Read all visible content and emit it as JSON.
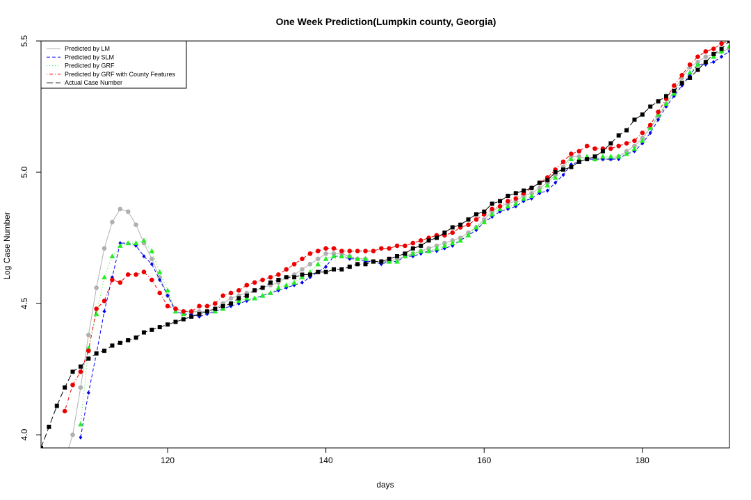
{
  "chart_data": {
    "type": "line",
    "title": "One Week Prediction(Lumpkin county, Georgia)",
    "xlabel": "days",
    "ylabel": "Log Case Number",
    "xlim": [
      104,
      191
    ],
    "ylim": [
      3.95,
      5.5
    ],
    "xticks": [
      120,
      140,
      160,
      180
    ],
    "yticks": [
      4.0,
      4.5,
      5.0,
      5.5
    ],
    "ytick_labels": [
      "4.0",
      "4.5",
      "5.0",
      "5.5"
    ],
    "legend_position": "top-left",
    "grid": false,
    "x": [
      104,
      105,
      106,
      107,
      108,
      109,
      110,
      111,
      112,
      113,
      114,
      115,
      116,
      117,
      118,
      119,
      120,
      121,
      122,
      123,
      124,
      125,
      126,
      127,
      128,
      129,
      130,
      131,
      132,
      133,
      134,
      135,
      136,
      137,
      138,
      139,
      140,
      141,
      142,
      143,
      144,
      145,
      146,
      147,
      148,
      149,
      150,
      151,
      152,
      153,
      154,
      155,
      156,
      157,
      158,
      159,
      160,
      161,
      162,
      163,
      164,
      165,
      166,
      167,
      168,
      169,
      170,
      171,
      172,
      173,
      174,
      175,
      176,
      177,
      178,
      179,
      180,
      181,
      182,
      183,
      184,
      185,
      186,
      187,
      188,
      189,
      190,
      191
    ],
    "series": [
      {
        "name": "Predicted by LM",
        "color": "#b0b0b0",
        "line": "solid",
        "marker": "circle",
        "values": [
          null,
          null,
          null,
          3.9,
          4.0,
          4.18,
          4.38,
          4.56,
          4.71,
          4.81,
          4.86,
          4.85,
          4.8,
          4.73,
          4.67,
          4.6,
          4.53,
          4.48,
          4.47,
          4.47,
          4.47,
          4.47,
          4.48,
          4.5,
          4.52,
          4.53,
          4.54,
          4.55,
          4.56,
          4.57,
          4.58,
          4.6,
          4.61,
          4.63,
          4.65,
          4.67,
          4.69,
          4.69,
          4.69,
          4.68,
          4.67,
          4.67,
          4.66,
          4.66,
          4.66,
          4.67,
          4.68,
          4.69,
          4.7,
          4.71,
          4.72,
          4.73,
          4.74,
          4.75,
          4.77,
          4.79,
          4.82,
          4.85,
          4.87,
          4.88,
          4.89,
          4.91,
          4.92,
          4.94,
          4.96,
          4.99,
          5.02,
          5.06,
          5.06,
          5.05,
          5.05,
          5.05,
          5.05,
          5.06,
          5.08,
          5.1,
          5.13,
          5.17,
          5.21,
          5.26,
          5.31,
          5.36,
          5.4,
          5.42,
          5.44,
          5.45,
          5.46,
          5.47
        ]
      },
      {
        "name": "Predicted by SLM",
        "color": "#0000ee",
        "line": "dashed",
        "marker": "diamond",
        "values": [
          null,
          null,
          null,
          null,
          null,
          3.99,
          4.16,
          4.31,
          4.47,
          4.6,
          4.73,
          4.73,
          4.72,
          4.68,
          4.65,
          4.59,
          4.53,
          4.47,
          4.46,
          4.46,
          4.45,
          4.46,
          4.47,
          4.48,
          4.49,
          4.5,
          4.51,
          4.52,
          4.53,
          4.54,
          4.55,
          4.56,
          4.57,
          4.58,
          4.6,
          4.62,
          4.64,
          4.68,
          4.68,
          4.67,
          4.67,
          4.66,
          4.66,
          4.65,
          4.66,
          4.66,
          4.68,
          4.68,
          4.69,
          4.7,
          4.7,
          4.71,
          4.72,
          4.74,
          4.76,
          4.78,
          4.81,
          4.83,
          4.85,
          4.86,
          4.87,
          4.89,
          4.9,
          4.92,
          4.93,
          4.96,
          4.99,
          5.03,
          5.04,
          5.05,
          5.05,
          5.05,
          5.05,
          5.05,
          5.07,
          5.08,
          5.11,
          5.15,
          5.2,
          5.25,
          5.29,
          5.33,
          5.37,
          5.41,
          5.41,
          5.42,
          5.44,
          5.46
        ]
      },
      {
        "name": "Predicted by GRF",
        "color": "#22ee22",
        "line": "dotted",
        "marker": "triangle",
        "values": [
          null,
          null,
          null,
          null,
          null,
          4.04,
          4.33,
          4.46,
          4.6,
          4.68,
          4.72,
          4.73,
          4.73,
          4.74,
          4.7,
          4.62,
          4.55,
          4.47,
          4.46,
          4.47,
          4.46,
          4.47,
          4.47,
          4.48,
          4.5,
          4.51,
          4.52,
          4.52,
          4.53,
          4.54,
          4.56,
          4.57,
          4.58,
          4.6,
          4.62,
          4.65,
          4.67,
          4.68,
          4.68,
          4.68,
          4.67,
          4.67,
          4.66,
          4.66,
          4.66,
          4.66,
          4.68,
          4.69,
          4.7,
          4.7,
          4.71,
          4.72,
          4.73,
          4.74,
          4.76,
          4.79,
          4.81,
          4.84,
          4.86,
          4.87,
          4.88,
          4.9,
          4.91,
          4.93,
          4.95,
          4.98,
          5.01,
          5.05,
          5.05,
          5.06,
          5.05,
          5.06,
          5.06,
          5.06,
          5.07,
          5.09,
          5.12,
          5.17,
          5.22,
          5.26,
          5.3,
          5.34,
          5.38,
          5.41,
          5.42,
          5.44,
          5.46,
          5.48
        ]
      },
      {
        "name": "Predicted by GRF with County Features",
        "color": "#ee0000",
        "line": "dotdash",
        "marker": "circle",
        "values": [
          null,
          null,
          null,
          4.09,
          4.19,
          4.24,
          4.32,
          4.48,
          4.51,
          4.59,
          4.58,
          4.61,
          4.61,
          4.62,
          4.59,
          4.54,
          4.49,
          4.48,
          4.47,
          4.47,
          4.49,
          4.49,
          4.5,
          4.53,
          4.54,
          4.55,
          4.57,
          4.58,
          4.59,
          4.6,
          4.61,
          4.63,
          4.65,
          4.67,
          4.69,
          4.7,
          4.71,
          4.71,
          4.7,
          4.7,
          4.7,
          4.7,
          4.7,
          4.71,
          4.71,
          4.72,
          4.72,
          4.73,
          4.74,
          4.75,
          4.76,
          4.76,
          4.77,
          4.79,
          4.8,
          4.82,
          4.84,
          4.86,
          4.87,
          4.89,
          4.9,
          4.92,
          4.94,
          4.96,
          4.98,
          5.01,
          5.04,
          5.07,
          5.08,
          5.1,
          5.09,
          5.09,
          5.09,
          5.1,
          5.11,
          5.12,
          5.15,
          5.18,
          5.23,
          5.28,
          5.33,
          5.37,
          5.41,
          5.44,
          5.46,
          5.47,
          5.49,
          5.5
        ]
      },
      {
        "name": "Actual Case Number",
        "color": "#000000",
        "line": "longdash",
        "marker": "square",
        "values": [
          3.95,
          4.03,
          4.11,
          4.18,
          4.24,
          4.26,
          4.29,
          4.31,
          4.32,
          4.34,
          4.35,
          4.36,
          4.37,
          4.39,
          4.4,
          4.41,
          4.42,
          4.43,
          4.44,
          4.45,
          4.46,
          4.47,
          4.48,
          4.49,
          4.5,
          4.52,
          4.53,
          4.55,
          4.56,
          4.58,
          4.59,
          4.6,
          4.6,
          4.61,
          4.61,
          4.62,
          4.62,
          4.63,
          4.63,
          4.64,
          4.65,
          4.65,
          4.66,
          4.66,
          4.67,
          4.68,
          4.69,
          4.71,
          4.72,
          4.74,
          4.75,
          4.77,
          4.79,
          4.8,
          4.82,
          4.84,
          4.85,
          4.88,
          4.89,
          4.91,
          4.92,
          4.93,
          4.94,
          4.96,
          4.97,
          5.0,
          5.01,
          5.02,
          5.04,
          5.05,
          5.06,
          5.08,
          5.11,
          5.14,
          5.16,
          5.2,
          5.22,
          5.25,
          5.27,
          5.29,
          5.31,
          5.34,
          5.36,
          5.39,
          5.42,
          5.45,
          5.47,
          5.5
        ]
      }
    ]
  }
}
